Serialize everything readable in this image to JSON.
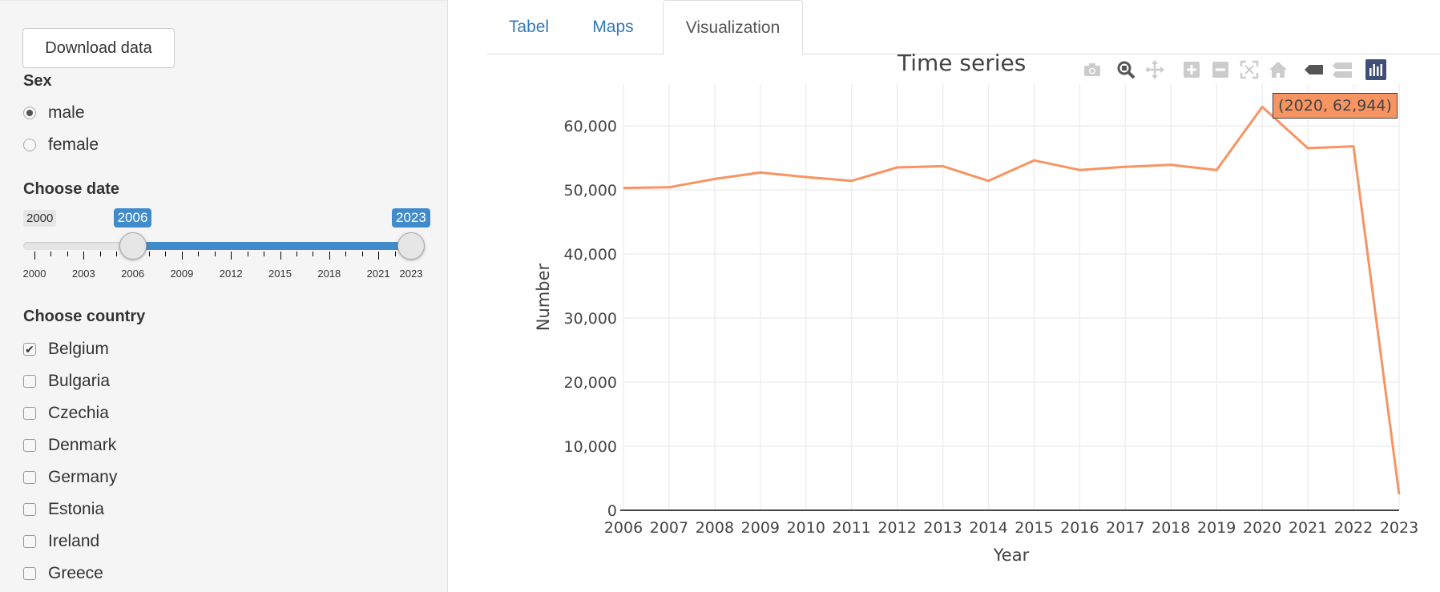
{
  "sidebar": {
    "download_label": "Download data",
    "sex_label": "Sex",
    "sex_options": [
      {
        "label": "male",
        "checked": true
      },
      {
        "label": "female",
        "checked": false
      }
    ],
    "date_label": "Choose date",
    "slider": {
      "min": 2000,
      "max": 2023,
      "from": 2006,
      "to": 2023,
      "min_label": "2000",
      "from_label": "2006",
      "to_label": "2023",
      "ticks": [
        "2000",
        "2003",
        "2006",
        "2009",
        "2012",
        "2015",
        "2018",
        "2021",
        "2023"
      ]
    },
    "country_label": "Choose country",
    "countries": [
      {
        "label": "Belgium",
        "checked": true
      },
      {
        "label": "Bulgaria",
        "checked": false
      },
      {
        "label": "Czechia",
        "checked": false
      },
      {
        "label": "Denmark",
        "checked": false
      },
      {
        "label": "Germany",
        "checked": false
      },
      {
        "label": "Estonia",
        "checked": false
      },
      {
        "label": "Ireland",
        "checked": false
      },
      {
        "label": "Greece",
        "checked": false
      }
    ]
  },
  "tabs": [
    {
      "label": "Tabel",
      "active": false
    },
    {
      "label": "Maps",
      "active": false
    },
    {
      "label": "Visualization",
      "active": true
    }
  ],
  "modebar": [
    "camera-icon",
    "zoom-icon",
    "pan-icon",
    "zoom-in-icon",
    "zoom-out-icon",
    "autoscale-icon",
    "home-icon",
    "hover-closest-icon",
    "hover-compare-icon",
    "plotly-logo-icon"
  ],
  "tooltip": "(2020, 62,944)",
  "chart_data": {
    "type": "line",
    "title": "Time series",
    "xlabel": "Year",
    "ylabel": "Number",
    "x": [
      2006,
      2007,
      2008,
      2009,
      2010,
      2011,
      2012,
      2013,
      2014,
      2015,
      2016,
      2017,
      2018,
      2019,
      2020,
      2021,
      2022,
      2023
    ],
    "series": [
      {
        "values": [
          50300,
          50400,
          51700,
          52700,
          52000,
          51400,
          53500,
          53700,
          51400,
          54600,
          53100,
          53600,
          53900,
          53100,
          62944,
          56500,
          56800,
          2500
        ],
        "color": "#f79462"
      }
    ],
    "xlim": [
      2006,
      2023
    ],
    "ylim": [
      0,
      66500
    ],
    "yticks": [
      0,
      10000,
      20000,
      30000,
      40000,
      50000,
      60000
    ],
    "ytick_labels": [
      "0",
      "10,000",
      "20,000",
      "30,000",
      "40,000",
      "50,000",
      "60,000"
    ],
    "grid": true
  }
}
